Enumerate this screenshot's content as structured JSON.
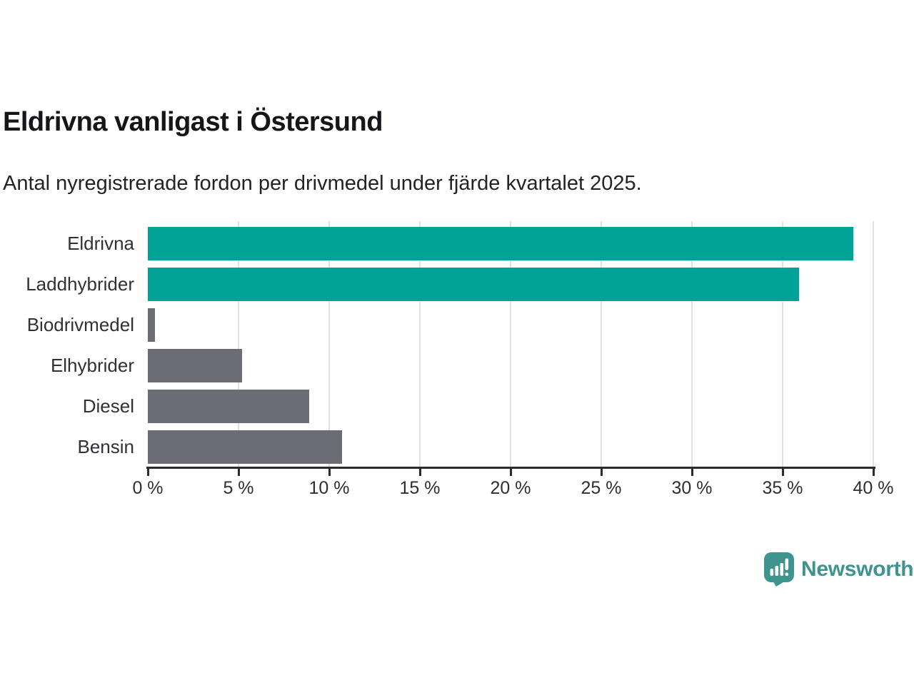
{
  "header": {
    "title": "Eldrivna vanligast i Östersund",
    "subtitle": "Antal nyregistrerade fordon per drivmedel under fjärde kvartalet 2025."
  },
  "chart_data": {
    "type": "bar",
    "orientation": "horizontal",
    "title": "Eldrivna vanligast i Östersund",
    "subtitle": "Antal nyregistrerade fordon per drivmedel under fjärde kvartalet 2025.",
    "categories": [
      "Eldrivna",
      "Laddhybrider",
      "Biodrivmedel",
      "Elhybrider",
      "Diesel",
      "Bensin"
    ],
    "values": [
      38.9,
      35.9,
      0.4,
      5.2,
      8.9,
      10.7
    ],
    "unit": "%",
    "xlabel": "",
    "ylabel": "",
    "xlim": [
      0,
      40
    ],
    "x_ticks": [
      0,
      5,
      10,
      15,
      20,
      25,
      30,
      35,
      40
    ],
    "x_tick_labels": [
      "0 %",
      "5 %",
      "10 %",
      "15 %",
      "20 %",
      "25 %",
      "30 %",
      "35 %",
      "40 %"
    ],
    "grid": "vertical gridlines on",
    "legend": "none",
    "bar_colors": [
      "#00A396",
      "#00A396",
      "#6C6C74",
      "#6C6C74",
      "#6C6C74",
      "#6C6C74"
    ]
  },
  "colors": {
    "highlight": "#00A396",
    "muted": "#6C6C74",
    "grid": "#E1E1E1",
    "axis": "#2B2B2E",
    "brand": "#3F948F"
  },
  "branding": {
    "name": "Newsworthy",
    "icon": "newsworthy-chart-bubble-icon"
  }
}
